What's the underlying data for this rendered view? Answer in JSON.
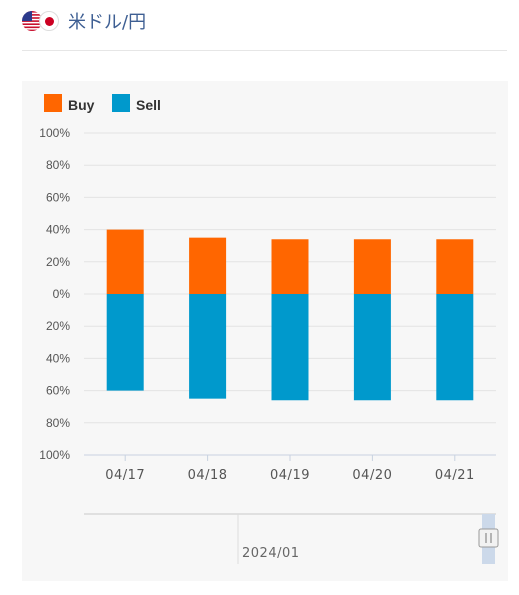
{
  "header": {
    "pair_title": "米ドル/円",
    "flag_left_icon": "us-flag-icon",
    "flag_right_icon": "jp-flag-icon"
  },
  "colors": {
    "buy": "#ff6600",
    "sell": "#0099cc",
    "panel_bg": "#f7f7f7",
    "title": "#3e5f93"
  },
  "chart_data": {
    "type": "bar",
    "stacked": true,
    "categories": [
      "04/17",
      "04/18",
      "04/19",
      "04/20",
      "04/21"
    ],
    "series": [
      {
        "name": "Buy",
        "values": [
          40,
          35,
          34,
          34,
          34
        ],
        "color": "#ff6600"
      },
      {
        "name": "Sell",
        "values": [
          -60,
          -65,
          -66,
          -66,
          -66
        ],
        "color": "#0099cc"
      }
    ],
    "y_tick_labels": [
      "100%",
      "80%",
      "60%",
      "40%",
      "20%",
      "0%",
      "20%",
      "40%",
      "60%",
      "80%",
      "100%"
    ],
    "ylim": [
      -100,
      100
    ],
    "legend_position": "top-left",
    "grid": true,
    "navigator": {
      "label": "2024/01"
    }
  }
}
